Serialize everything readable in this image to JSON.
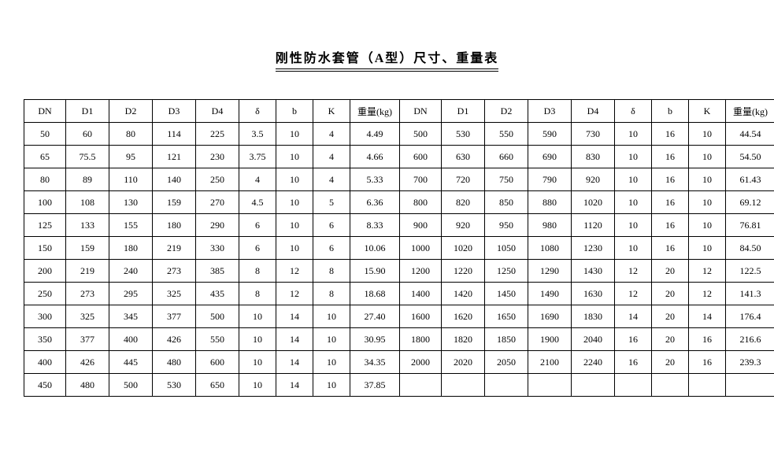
{
  "title": "刚性防水套管（A型）尺寸、重量表",
  "headers": [
    "DN",
    "D1",
    "D2",
    "D3",
    "D4",
    "δ",
    "b",
    "K",
    "重量(kg)"
  ],
  "leftRows": [
    [
      "50",
      "60",
      "80",
      "114",
      "225",
      "3.5",
      "10",
      "4",
      "4.49"
    ],
    [
      "65",
      "75.5",
      "95",
      "121",
      "230",
      "3.75",
      "10",
      "4",
      "4.66"
    ],
    [
      "80",
      "89",
      "110",
      "140",
      "250",
      "4",
      "10",
      "4",
      "5.33"
    ],
    [
      "100",
      "108",
      "130",
      "159",
      "270",
      "4.5",
      "10",
      "5",
      "6.36"
    ],
    [
      "125",
      "133",
      "155",
      "180",
      "290",
      "6",
      "10",
      "6",
      "8.33"
    ],
    [
      "150",
      "159",
      "180",
      "219",
      "330",
      "6",
      "10",
      "6",
      "10.06"
    ],
    [
      "200",
      "219",
      "240",
      "273",
      "385",
      "8",
      "12",
      "8",
      "15.90"
    ],
    [
      "250",
      "273",
      "295",
      "325",
      "435",
      "8",
      "12",
      "8",
      "18.68"
    ],
    [
      "300",
      "325",
      "345",
      "377",
      "500",
      "10",
      "14",
      "10",
      "27.40"
    ],
    [
      "350",
      "377",
      "400",
      "426",
      "550",
      "10",
      "14",
      "10",
      "30.95"
    ],
    [
      "400",
      "426",
      "445",
      "480",
      "600",
      "10",
      "14",
      "10",
      "34.35"
    ],
    [
      "450",
      "480",
      "500",
      "530",
      "650",
      "10",
      "14",
      "10",
      "37.85"
    ]
  ],
  "rightRows": [
    [
      "500",
      "530",
      "550",
      "590",
      "730",
      "10",
      "16",
      "10",
      "44.54"
    ],
    [
      "600",
      "630",
      "660",
      "690",
      "830",
      "10",
      "16",
      "10",
      "54.50"
    ],
    [
      "700",
      "720",
      "750",
      "790",
      "920",
      "10",
      "16",
      "10",
      "61.43"
    ],
    [
      "800",
      "820",
      "850",
      "880",
      "1020",
      "10",
      "16",
      "10",
      "69.12"
    ],
    [
      "900",
      "920",
      "950",
      "980",
      "1120",
      "10",
      "16",
      "10",
      "76.81"
    ],
    [
      "1000",
      "1020",
      "1050",
      "1080",
      "1230",
      "10",
      "16",
      "10",
      "84.50"
    ],
    [
      "1200",
      "1220",
      "1250",
      "1290",
      "1430",
      "12",
      "20",
      "12",
      "122.5"
    ],
    [
      "1400",
      "1420",
      "1450",
      "1490",
      "1630",
      "12",
      "20",
      "12",
      "141.3"
    ],
    [
      "1600",
      "1620",
      "1650",
      "1690",
      "1830",
      "14",
      "20",
      "14",
      "176.4"
    ],
    [
      "1800",
      "1820",
      "1850",
      "1900",
      "2040",
      "16",
      "20",
      "16",
      "216.6"
    ],
    [
      "2000",
      "2020",
      "2050",
      "2100",
      "2240",
      "16",
      "20",
      "16",
      "239.3"
    ],
    [
      "",
      "",
      "",
      "",
      "",
      "",
      "",
      "",
      ""
    ]
  ],
  "colClasses": [
    "w-dn",
    "w-d",
    "w-d",
    "w-d",
    "w-d",
    "w-sm",
    "w-sm",
    "w-sm",
    "w-wt"
  ]
}
